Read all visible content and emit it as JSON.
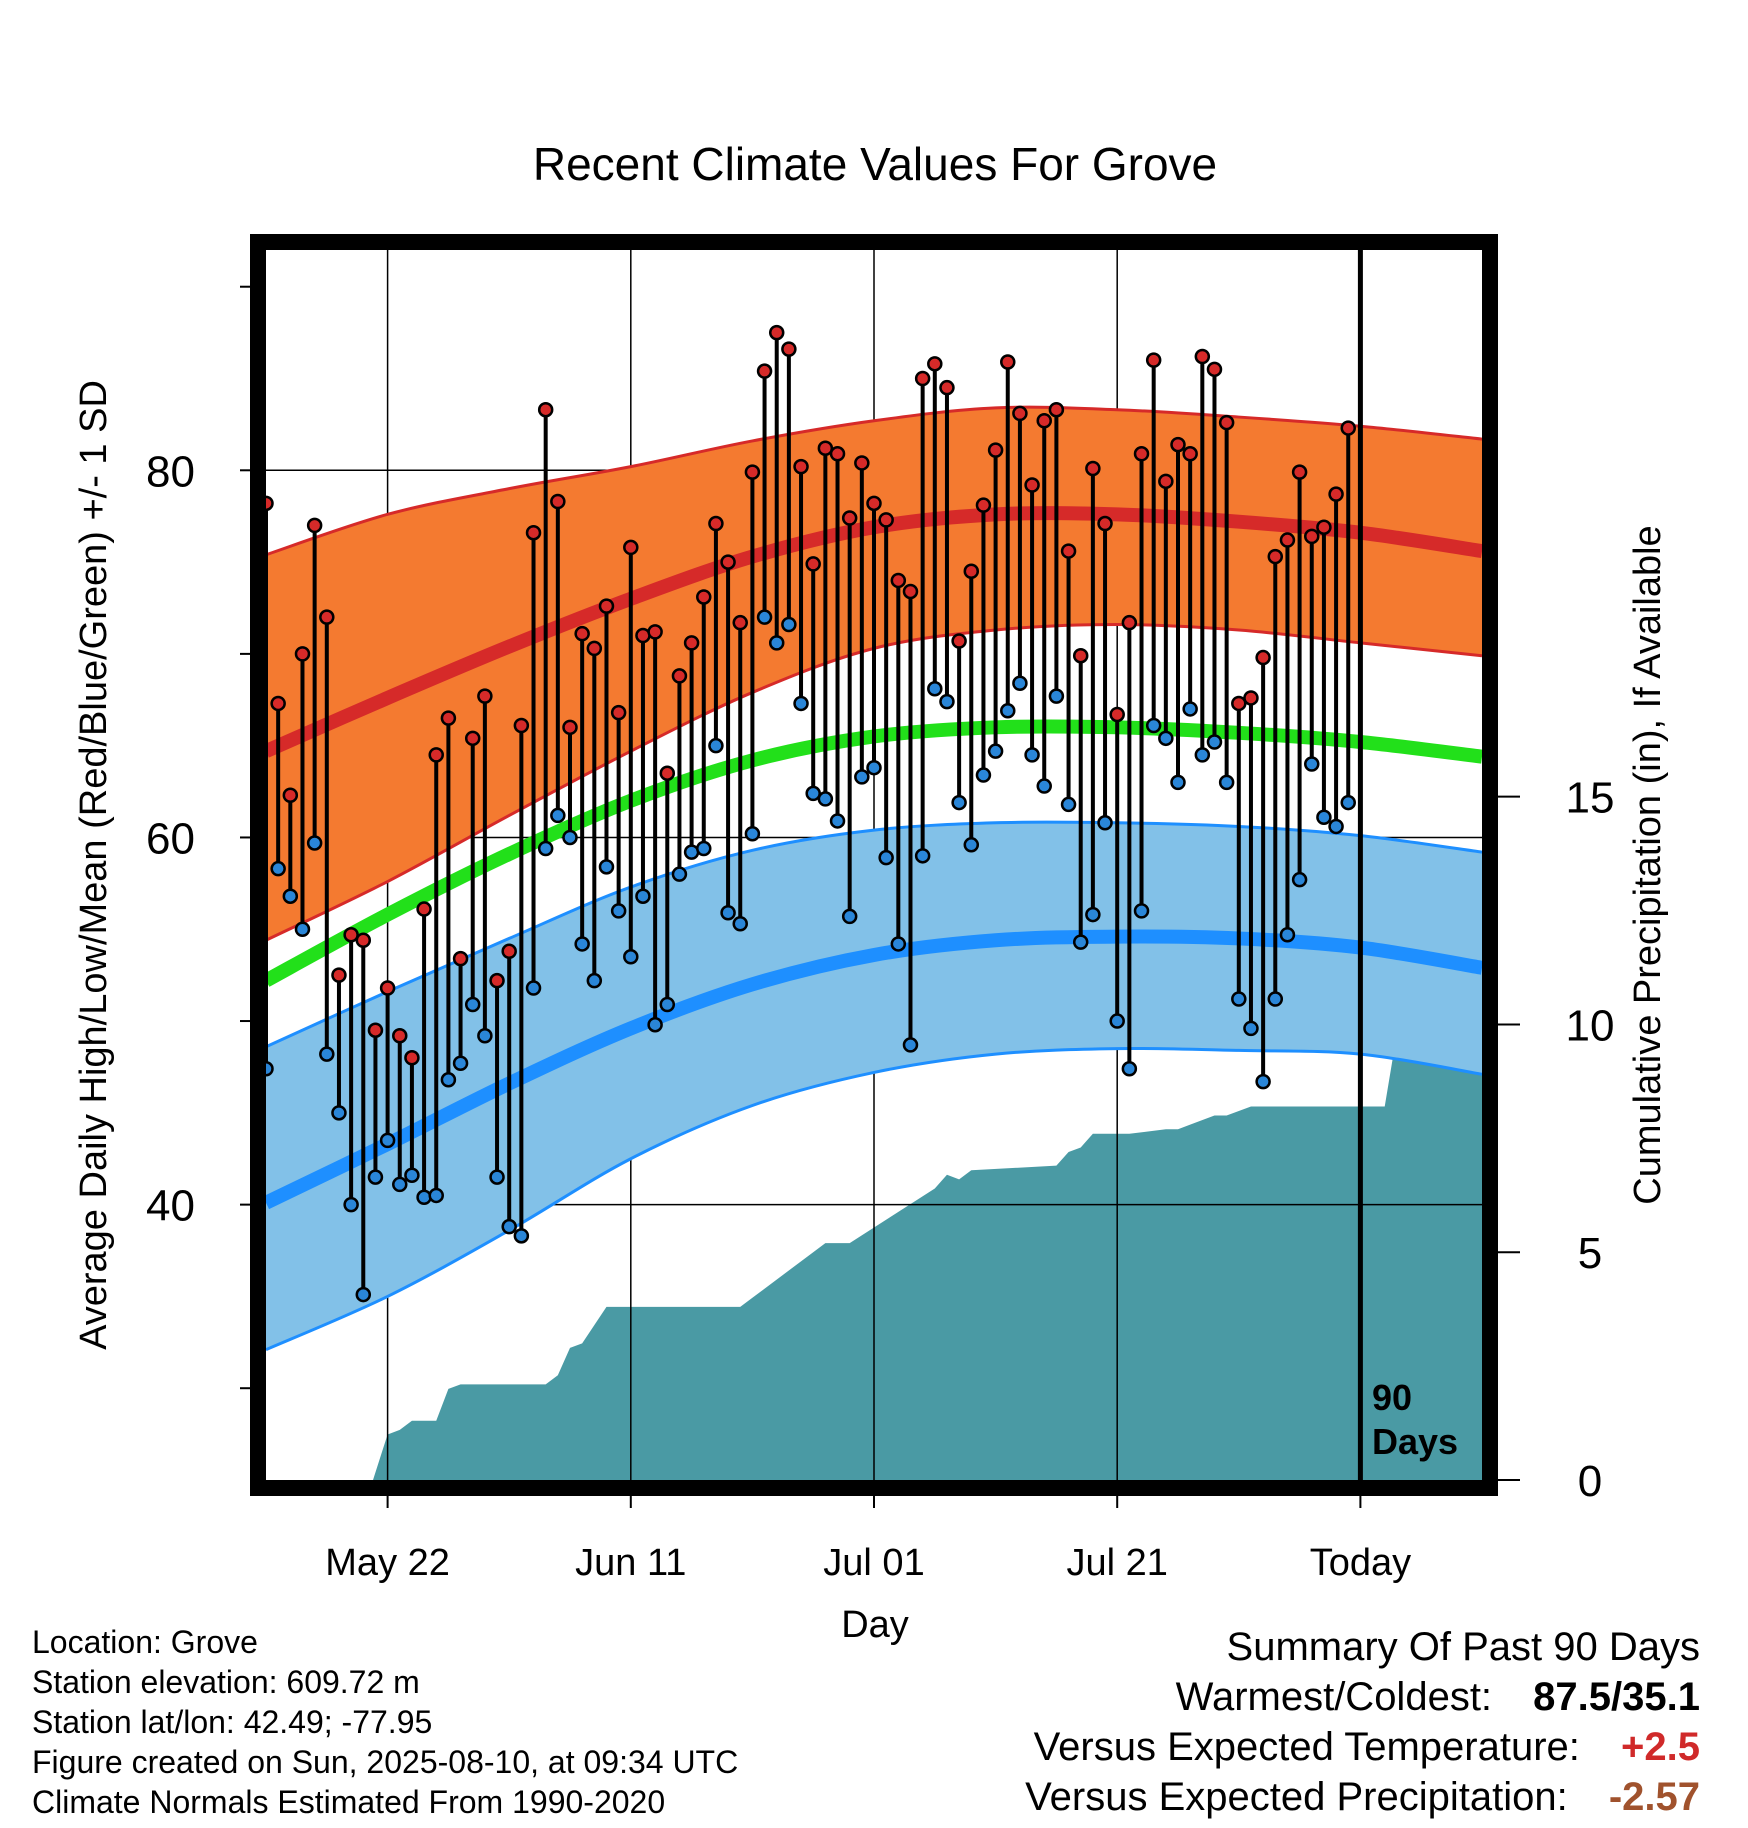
{
  "chart_data": {
    "type": "line",
    "title": "Recent Climate Values For Grove",
    "xlabel": "Day",
    "ylabel": "Average Daily High/Low/Mean (Red/Blue/Green) +/- 1 SD",
    "y2label": "Cumulative Precipitation (in), If Available",
    "xlim": [
      -10,
      90
    ],
    "ylim": [
      25,
      92
    ],
    "y2lim": [
      0,
      27
    ],
    "x_ticks": [
      {
        "x": 0,
        "label": "May 22"
      },
      {
        "x": 20,
        "label": "Jun 11"
      },
      {
        "x": 40,
        "label": "Jul 01"
      },
      {
        "x": 60,
        "label": "Jul 21"
      },
      {
        "x": 80,
        "label": "Today"
      }
    ],
    "y_ticks": [
      40,
      60,
      80
    ],
    "y2_ticks": [
      0,
      5,
      10,
      15
    ],
    "marker_label": "90 Days",
    "normal_high": {
      "x": [
        -10,
        0,
        10,
        20,
        30,
        40,
        50,
        60,
        70,
        80,
        90
      ],
      "mean": [
        64.7,
        67.6,
        70.4,
        73.0,
        75.3,
        76.9,
        77.6,
        77.6,
        77.2,
        76.6,
        75.6
      ],
      "upper": [
        75.4,
        77.6,
        79.0,
        80.2,
        81.6,
        82.7,
        83.4,
        83.3,
        82.9,
        82.4,
        81.7
      ],
      "lower": [
        54.4,
        57.6,
        61.2,
        64.7,
        67.9,
        70.3,
        71.3,
        71.6,
        71.3,
        70.6,
        69.9
      ]
    },
    "normal_mean": {
      "x": [
        -10,
        0,
        10,
        20,
        30,
        40,
        50,
        60,
        70,
        80,
        90
      ],
      "values": [
        52.2,
        55.8,
        59.1,
        62.0,
        64.2,
        65.5,
        66.0,
        66.0,
        65.7,
        65.2,
        64.4
      ]
    },
    "normal_low": {
      "x": [
        -10,
        0,
        10,
        20,
        30,
        40,
        50,
        60,
        70,
        80,
        90
      ],
      "mean": [
        40.1,
        43.3,
        46.6,
        49.6,
        52.0,
        53.6,
        54.4,
        54.6,
        54.5,
        54.0,
        52.9
      ],
      "upper": [
        48.6,
        51.6,
        54.5,
        57.3,
        59.3,
        60.4,
        60.8,
        60.8,
        60.6,
        60.1,
        59.2
      ],
      "lower": [
        32.1,
        35.0,
        38.6,
        42.5,
        45.4,
        47.2,
        48.2,
        48.5,
        48.4,
        48.2,
        47.1
      ]
    },
    "daily": {
      "x": [
        -10,
        -9,
        -8,
        -7,
        -6,
        -5,
        -4,
        -3,
        -2,
        -1,
        0,
        1,
        2,
        3,
        4,
        5,
        6,
        7,
        8,
        9,
        10,
        11,
        12,
        13,
        14,
        15,
        16,
        17,
        18,
        19,
        20,
        21,
        22,
        23,
        24,
        25,
        26,
        27,
        28,
        29,
        30,
        31,
        32,
        33,
        34,
        35,
        36,
        37,
        38,
        39,
        40,
        41,
        42,
        43,
        44,
        45,
        46,
        47,
        48,
        49,
        50,
        51,
        52,
        53,
        54,
        55,
        56,
        57,
        58,
        59,
        60,
        61,
        62,
        63,
        64,
        65,
        66,
        67,
        68,
        69,
        70,
        71,
        72,
        73,
        74,
        75,
        76,
        77,
        78,
        79
      ],
      "high": [
        78.2,
        67.3,
        62.3,
        70.0,
        77.0,
        72.0,
        52.5,
        54.7,
        54.4,
        49.5,
        51.8,
        49.2,
        48.0,
        56.1,
        64.5,
        66.5,
        53.4,
        65.4,
        67.7,
        52.2,
        53.8,
        66.1,
        76.6,
        83.3,
        78.3,
        66.0,
        71.1,
        70.3,
        72.6,
        66.8,
        75.8,
        71.0,
        71.2,
        63.5,
        68.8,
        70.6,
        73.1,
        77.1,
        75.0,
        71.7,
        79.9,
        85.4,
        87.5,
        86.6,
        80.2,
        74.9,
        81.2,
        80.9,
        77.4,
        80.4,
        78.2,
        77.3,
        74.0,
        73.4,
        85.0,
        85.8,
        84.5,
        70.7,
        74.5,
        78.1,
        81.1,
        85.9,
        83.1,
        79.2,
        82.7,
        83.3,
        75.6,
        69.9,
        80.1,
        77.1,
        66.7,
        71.7,
        80.9,
        86.0,
        79.4,
        81.4,
        80.9,
        86.2,
        85.5,
        82.6,
        67.3,
        67.6,
        69.8,
        75.3,
        76.2,
        79.9,
        76.4,
        76.9,
        78.7,
        82.3
      ],
      "low": [
        47.4,
        58.3,
        56.8,
        55.0,
        59.7,
        48.2,
        45.0,
        40.0,
        35.1,
        41.5,
        43.5,
        41.1,
        41.6,
        40.4,
        40.5,
        46.8,
        47.7,
        50.9,
        49.2,
        41.5,
        38.8,
        38.3,
        51.8,
        59.4,
        61.2,
        60.0,
        54.2,
        52.2,
        58.4,
        56.0,
        53.5,
        56.8,
        49.8,
        50.9,
        58.0,
        59.2,
        59.4,
        65.0,
        55.9,
        55.3,
        60.2,
        72.0,
        70.6,
        71.6,
        67.3,
        62.4,
        62.1,
        60.9,
        55.7,
        63.3,
        63.8,
        58.9,
        54.2,
        48.7,
        59.0,
        68.1,
        67.4,
        61.9,
        59.6,
        63.4,
        64.7,
        66.9,
        68.4,
        64.5,
        62.8,
        67.7,
        61.8,
        54.3,
        55.8,
        60.8,
        50.0,
        47.4,
        56.0,
        66.1,
        65.4,
        63.0,
        67.0,
        64.5,
        65.2,
        63.0,
        51.2,
        49.6,
        46.7,
        51.2,
        54.7,
        57.7,
        64.0,
        61.1,
        60.6,
        61.9
      ]
    },
    "precip": {
      "x": [
        -10,
        -2,
        -1.2,
        0,
        1,
        2,
        4,
        5,
        6,
        7,
        13,
        14,
        15,
        16,
        17,
        18,
        29,
        30,
        35,
        36,
        38,
        45,
        46,
        47,
        48,
        55,
        56,
        57,
        58,
        59,
        60,
        61,
        64,
        65,
        66,
        68,
        69,
        70,
        71,
        82,
        83,
        91
      ],
      "cumulative": [
        0,
        0,
        0,
        1.0,
        1.1,
        1.3,
        1.3,
        2.0,
        2.1,
        2.1,
        2.1,
        2.3,
        2.9,
        3.0,
        3.4,
        3.8,
        3.8,
        4.0,
        5.0,
        5.2,
        5.2,
        6.4,
        6.7,
        6.6,
        6.8,
        6.9,
        7.2,
        7.3,
        7.6,
        7.6,
        7.6,
        7.6,
        7.7,
        7.7,
        7.8,
        8.0,
        8.0,
        8.1,
        8.2,
        8.2,
        9.8,
        9.8
      ]
    },
    "grid": true,
    "colors": {
      "high_band": "#f47a30",
      "high_mean": "#d62a29",
      "mean": "#22e01a",
      "low_band": "#82c1e8",
      "low_mean": "#1e8fff",
      "precip": "#4a9aa4",
      "high_marker": "#d62a29",
      "low_marker": "#2a86d8"
    }
  },
  "footer_left": {
    "location": "Location: Grove",
    "elevation": "Station elevation: 609.72 m",
    "latlon": "Station lat/lon: 42.49; -77.95",
    "created": "Figure created on Sun, 2025-08-10, at 09:34 UTC",
    "normals": "Climate Normals Estimated From 1990-2020"
  },
  "summary": {
    "heading": "Summary Of Past 90 Days",
    "warm_cold_label": "Warmest/Coldest:",
    "warm_cold_value": "87.5/35.1",
    "temp_label": "Versus Expected Temperature:",
    "temp_value": "+2.5",
    "temp_color": "#d02a2a",
    "precip_label": "Versus Expected Precipitation:",
    "precip_value": "-2.57",
    "precip_color": "#a0522d"
  }
}
